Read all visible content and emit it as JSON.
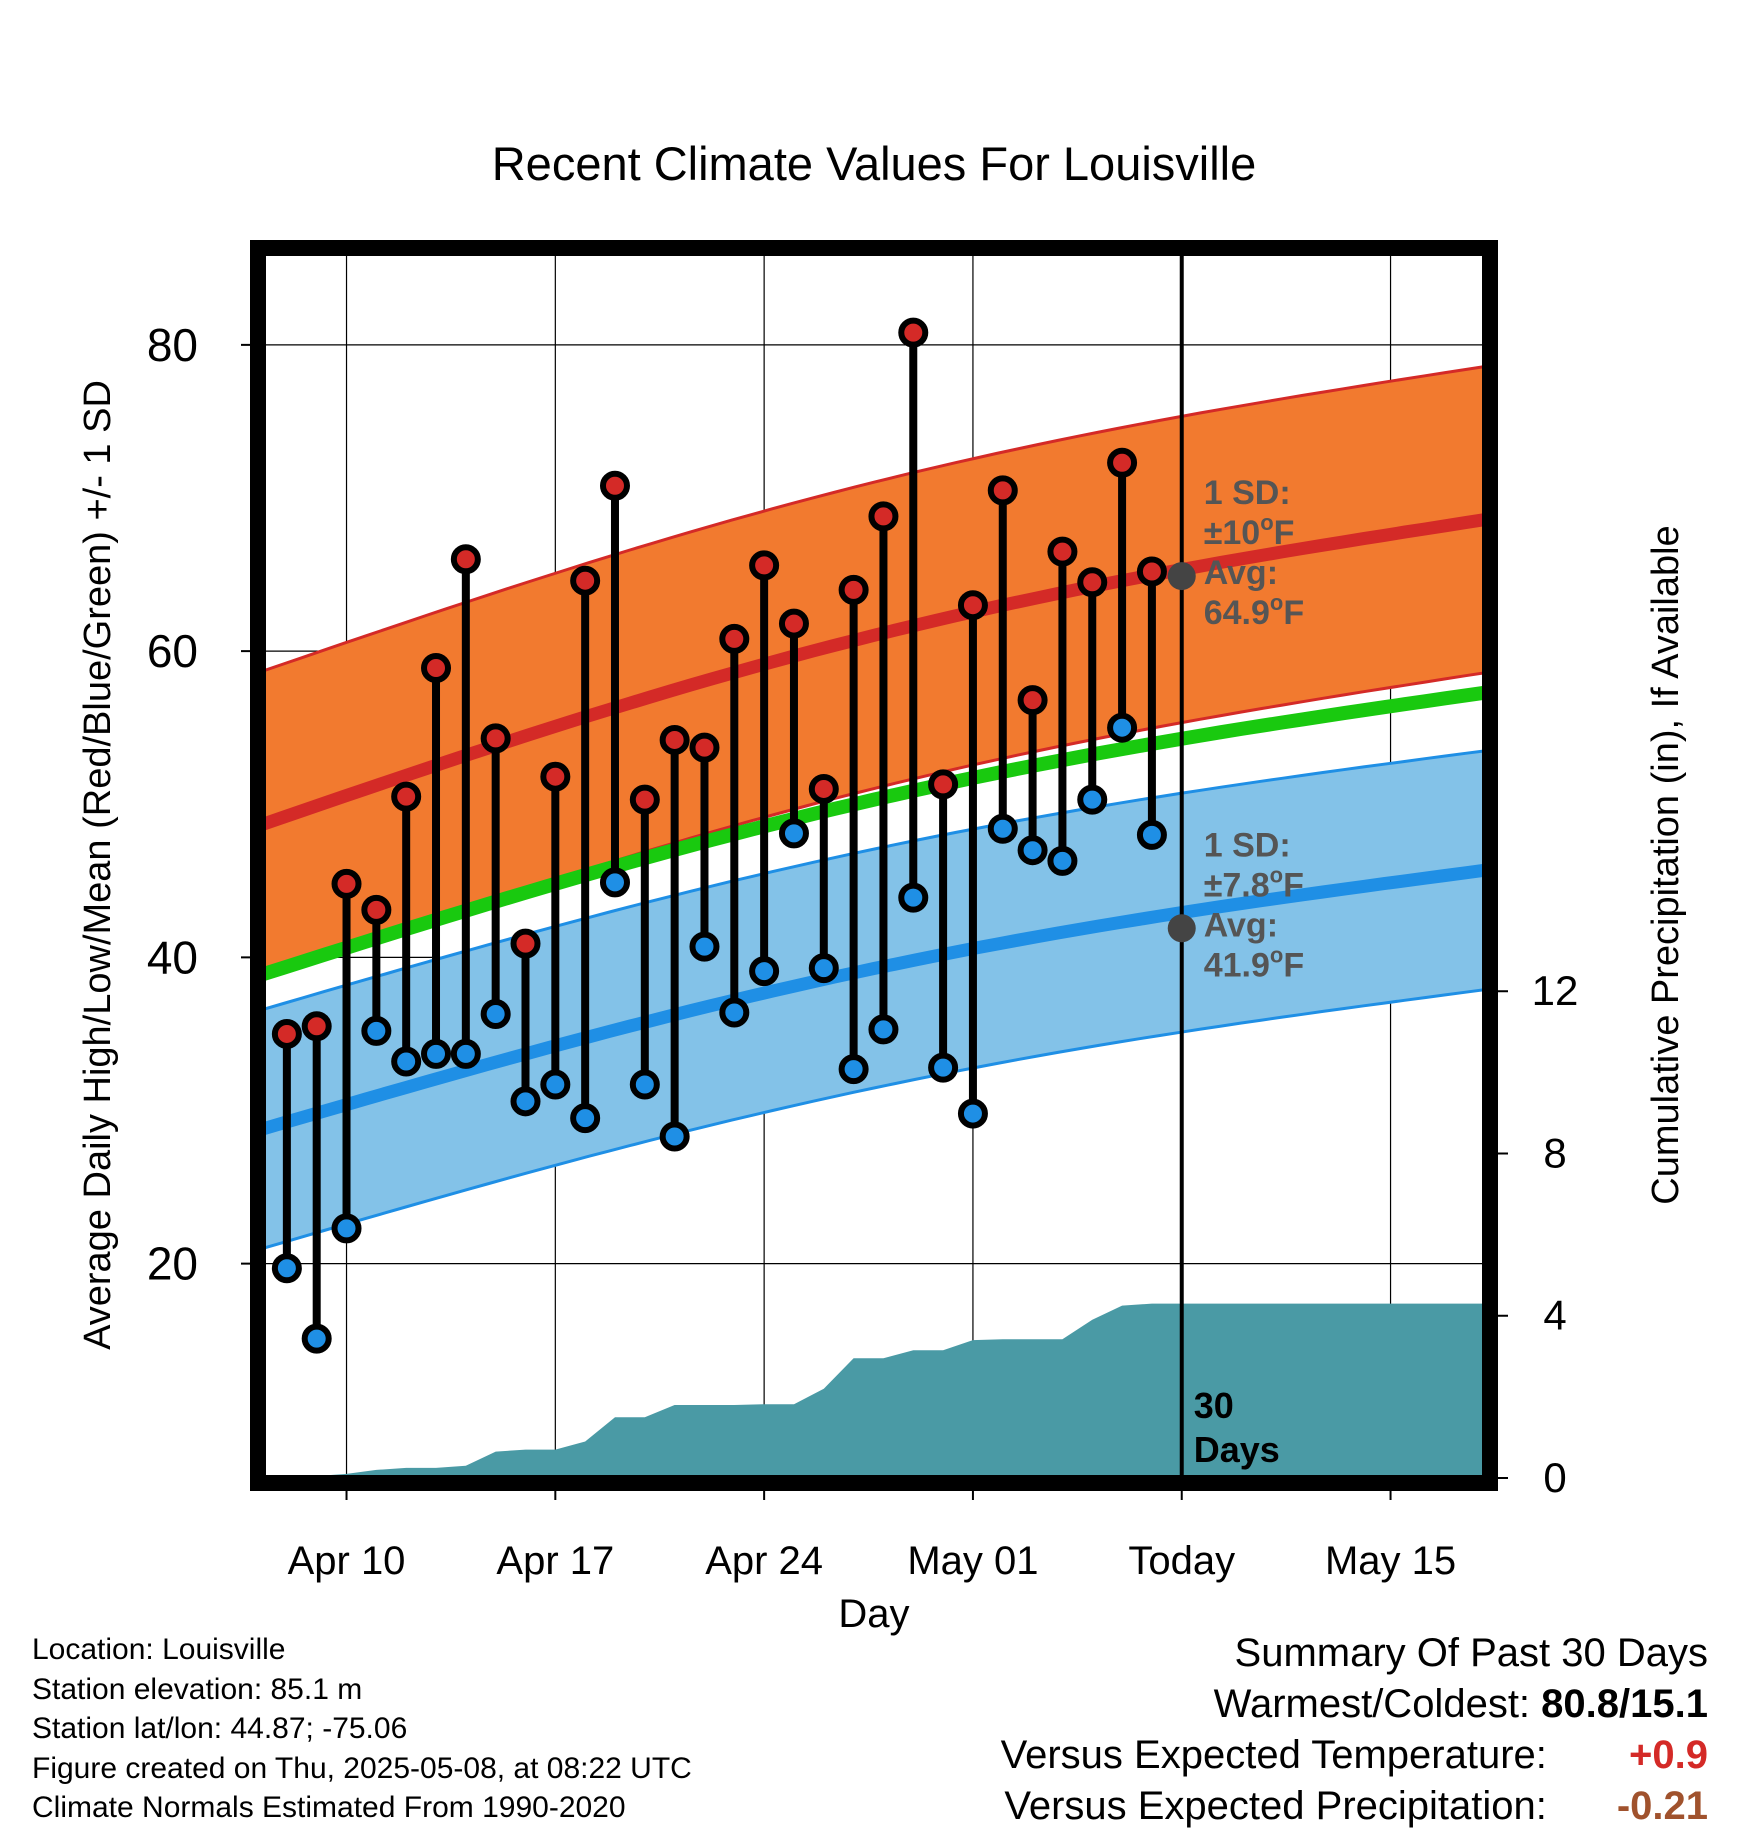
{
  "chart_data": {
    "type": "line",
    "title": "Recent Climate Values For Louisville",
    "xlabel": "Day",
    "ylabel": "Average Daily High/Low/Mean (Red/Blue/Green) +/- 1 SD",
    "y2label": "Cumulative Precipitation (in), If Available",
    "xlim": [
      -0.8,
      40.2
    ],
    "ylim": [
      6.0,
      86.0
    ],
    "y2lim": [
      0,
      30.2
    ],
    "grid": true,
    "x_ticks": [
      {
        "x": 2,
        "label": "Apr 10"
      },
      {
        "x": 9,
        "label": "Apr 17"
      },
      {
        "x": 16,
        "label": "Apr 24"
      },
      {
        "x": 23,
        "label": "May 01"
      },
      {
        "x": 30,
        "label": "Today"
      },
      {
        "x": 37,
        "label": "May 15"
      }
    ],
    "y_ticks": [
      20,
      40,
      60,
      80
    ],
    "y2_ticks": [
      0,
      4,
      8,
      12
    ],
    "today_x": 30,
    "today_label": "Today",
    "window_label": [
      "30",
      "Days"
    ],
    "normals": {
      "x_start": -0.8,
      "x_end": 40.2,
      "high_mean": [
        48.7,
        68.6
      ],
      "high_sd": 10,
      "low_mean": [
        28.8,
        45.7
      ],
      "low_sd": 7.8,
      "mean": [
        38.9,
        57.3
      ],
      "high_mean_today": 64.9,
      "low_mean_today": 41.9
    },
    "annotations": {
      "high_sd_label": "1 SD:",
      "high_sd_value": "±10",
      "high_avg_label": "Avg:",
      "high_avg_value": "64.9",
      "low_sd_label": "1 SD:",
      "low_sd_value": "±7.8",
      "low_avg_label": "Avg:",
      "low_avg_value": "41.9",
      "unit_sup": "o",
      "unit": "F"
    },
    "series": [
      {
        "name": "High",
        "color": "#d42a27",
        "x": [
          0,
          1,
          2,
          3,
          4,
          5,
          6,
          7,
          8,
          9,
          10,
          11,
          12,
          13,
          14,
          15,
          16,
          17,
          18,
          19,
          20,
          21,
          22,
          23,
          24,
          25,
          26,
          27,
          28,
          29
        ],
        "values": [
          35.0,
          35.5,
          44.8,
          43.1,
          50.5,
          58.9,
          66.0,
          54.3,
          40.9,
          51.8,
          64.6,
          70.8,
          50.3,
          54.2,
          53.7,
          60.8,
          65.6,
          61.8,
          51.0,
          64.0,
          68.8,
          80.8,
          51.3,
          63.0,
          70.5,
          56.8,
          66.5,
          64.5,
          72.3,
          65.2
        ]
      },
      {
        "name": "Low",
        "color": "#1f8fe5",
        "x": [
          0,
          1,
          2,
          3,
          4,
          5,
          6,
          7,
          8,
          9,
          10,
          11,
          12,
          13,
          14,
          15,
          16,
          17,
          18,
          19,
          20,
          21,
          22,
          23,
          24,
          25,
          26,
          27,
          28,
          29
        ],
        "values": [
          19.7,
          15.1,
          22.3,
          35.2,
          33.2,
          33.7,
          33.7,
          36.3,
          30.6,
          31.7,
          29.5,
          44.9,
          31.7,
          28.3,
          40.7,
          36.4,
          39.1,
          48.1,
          39.3,
          32.7,
          35.3,
          43.9,
          32.8,
          29.8,
          48.4,
          47.0,
          46.3,
          50.3,
          55.0,
          48.0
        ]
      }
    ],
    "precipitation": {
      "name": "Cumulative Precipitation",
      "color": "#4a9aa5",
      "x": [
        -0.8,
        0,
        1,
        2,
        3,
        4,
        5,
        6,
        7,
        8,
        9,
        10,
        11,
        12,
        13,
        14,
        15,
        16,
        17,
        18,
        19,
        20,
        21,
        22,
        23,
        24,
        25,
        26,
        27,
        28,
        29,
        30,
        40.2
      ],
      "values": [
        0.0,
        0.05,
        0.05,
        0.1,
        0.2,
        0.25,
        0.25,
        0.3,
        0.65,
        0.7,
        0.7,
        0.9,
        1.5,
        1.5,
        1.8,
        1.8,
        1.8,
        1.82,
        1.82,
        2.2,
        2.95,
        2.95,
        3.15,
        3.15,
        3.4,
        3.42,
        3.42,
        3.42,
        3.9,
        4.25,
        4.3,
        4.3,
        4.3
      ]
    }
  },
  "info": {
    "location": "Location: Louisville",
    "elevation": "Station elevation: 85.1 m",
    "latlon": "Station lat/lon: 44.87; -75.06",
    "created": "Figure created on Thu, 2025-05-08, at 08:22 UTC",
    "normals": "Climate Normals Estimated From 1990-2020"
  },
  "summary": {
    "title": "Summary Of Past 30 Days",
    "warm_cold_label": "Warmest/Coldest:",
    "warm_cold_value": "80.8/15.1",
    "temp_label": "Versus Expected Temperature:",
    "temp_value": "+0.9",
    "precip_label": "Versus Expected Precipitation:",
    "precip_value": "-0.21",
    "colors": {
      "temp": "#d42a27",
      "precip": "#a0522d"
    }
  },
  "colors": {
    "high_band": "#f27a2f",
    "high_line": "#d42a27",
    "low_band": "#83c2e8",
    "low_line": "#1f8fe5",
    "mean_line": "#19c90f",
    "marker_today": "#444444",
    "annotation": "#555555"
  }
}
